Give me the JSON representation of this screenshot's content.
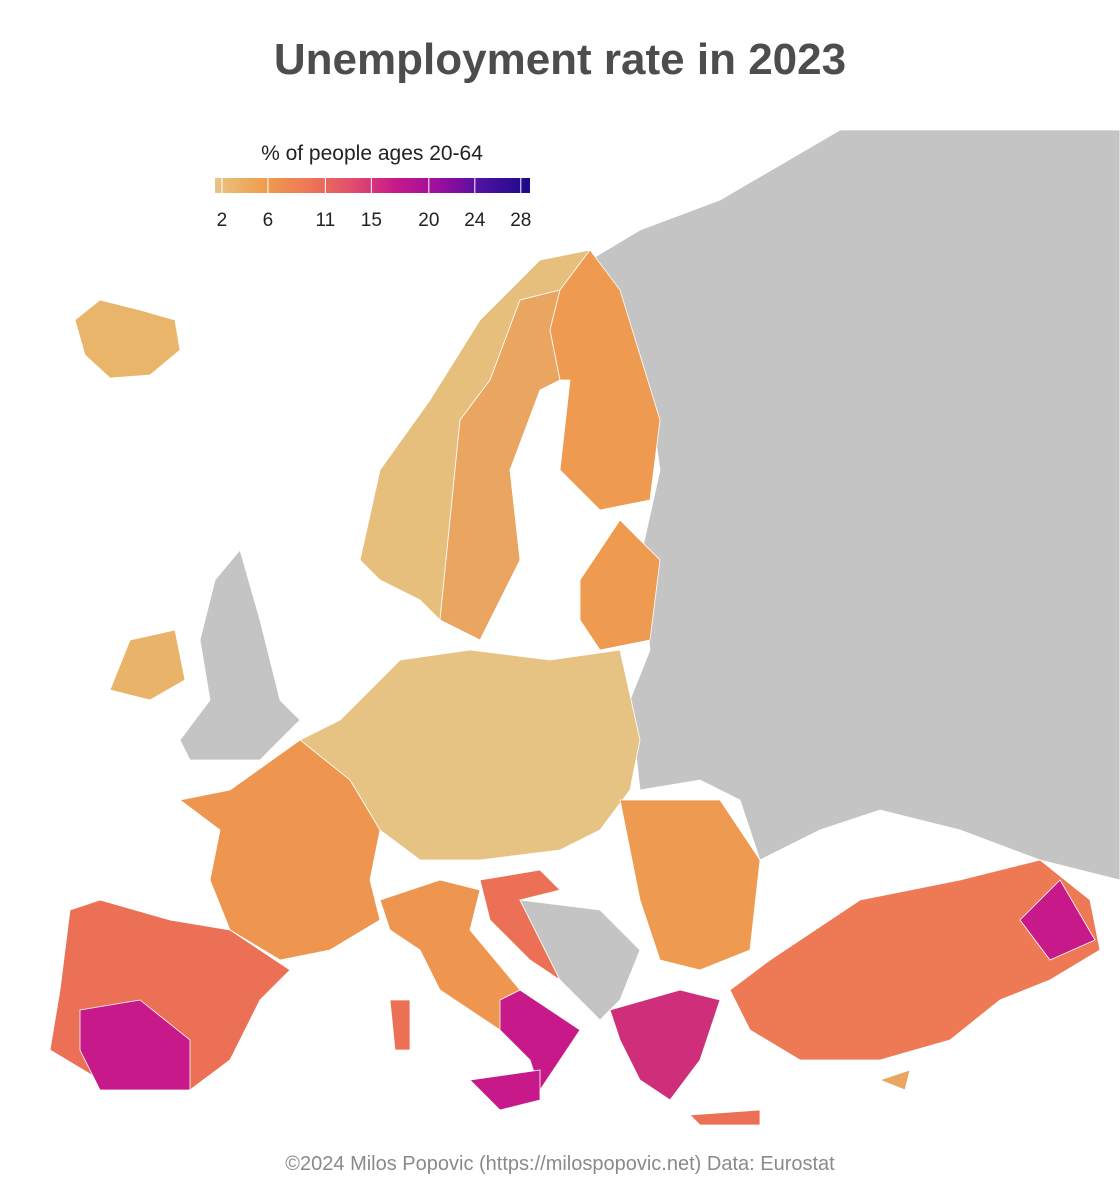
{
  "title": "Unemployment rate in 2023",
  "legend": {
    "title": "% of people ages 20-64",
    "range": [
      1.4,
      28.8
    ],
    "ticks": [
      2,
      6,
      11,
      15,
      20,
      24,
      28
    ],
    "colors": [
      "#e8c486",
      "#eea150",
      "#ef7a55",
      "#e2506a",
      "#c8198a",
      "#9a0e9e",
      "#4a10a0",
      "#1c0a8a"
    ]
  },
  "caption": "©2024 Milos Popovic (https://milospopovic.net) Data: Eurostat"
}
